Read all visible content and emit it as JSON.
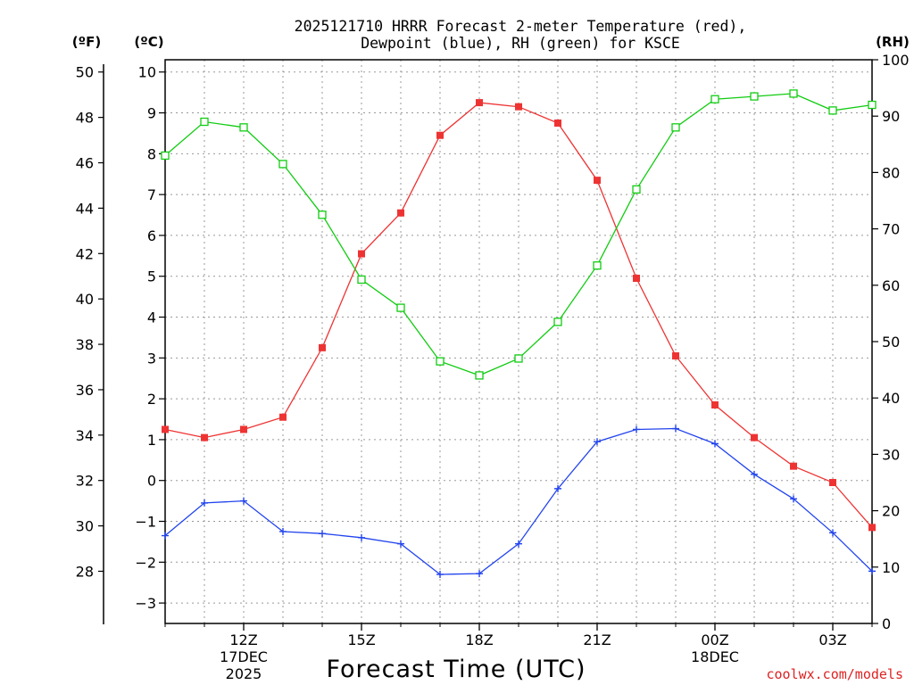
{
  "chart_data": {
    "type": "line",
    "title_line1": "2025121710 HRRR Forecast 2-meter Temperature (red),",
    "title_line2": "Dewpoint (blue), RH (green) for KSCE",
    "xlabel": "Forecast Time (UTC)",
    "unit_f": "(ºF)",
    "unit_c": "(ºC)",
    "unit_rh": "(RH)",
    "watermark": "coolwx.com/models",
    "x_hours": [
      10,
      11,
      12,
      13,
      14,
      15,
      16,
      17,
      18,
      19,
      20,
      21,
      22,
      23,
      24,
      25,
      26,
      27,
      28
    ],
    "x_range": [
      10,
      28
    ],
    "x_ticks": [
      {
        "hour": 12,
        "label": "12Z",
        "date": "17DEC",
        "year": "2025"
      },
      {
        "hour": 15,
        "label": "15Z"
      },
      {
        "hour": 18,
        "label": "18Z"
      },
      {
        "hour": 21,
        "label": "21Z"
      },
      {
        "hour": 24,
        "label": "00Z",
        "date": "18DEC"
      },
      {
        "hour": 27,
        "label": "03Z"
      }
    ],
    "c_axis": {
      "range": [
        -3.5,
        10.3
      ],
      "ticks": [
        -3,
        -2,
        -1,
        0,
        1,
        2,
        3,
        4,
        5,
        6,
        7,
        8,
        9,
        10
      ]
    },
    "f_axis": {
      "ticks": [
        28,
        30,
        32,
        34,
        36,
        38,
        40,
        42,
        44,
        46,
        48,
        50
      ]
    },
    "rh_axis": {
      "range": [
        0,
        100
      ],
      "ticks": [
        0,
        10,
        20,
        30,
        40,
        50,
        60,
        70,
        80,
        90,
        100
      ]
    },
    "series": [
      {
        "name": "Temperature",
        "axis": "c",
        "color": "#ee3333",
        "marker": "filled-square",
        "values": [
          1.25,
          1.05,
          1.25,
          1.55,
          3.25,
          5.55,
          6.55,
          8.45,
          9.25,
          9.15,
          8.75,
          7.35,
          4.95,
          3.05,
          1.85,
          1.05,
          0.35,
          -0.05,
          -1.15
        ]
      },
      {
        "name": "Dewpoint",
        "axis": "c",
        "color": "#2244ee",
        "marker": "plus",
        "values": [
          -1.35,
          -0.55,
          -0.5,
          -1.25,
          -1.3,
          -1.4,
          -1.55,
          -2.3,
          -2.28,
          -1.55,
          -0.2,
          0.95,
          1.25,
          1.27,
          0.9,
          0.15,
          -0.45,
          -1.28,
          -2.22
        ]
      },
      {
        "name": "RH",
        "axis": "rh",
        "color": "#11cc11",
        "marker": "open-square",
        "values": [
          83,
          89,
          88,
          81.5,
          72.5,
          61,
          56,
          46.5,
          44,
          47,
          53.5,
          63.5,
          77,
          88,
          93,
          93.5,
          94,
          91,
          92
        ]
      }
    ]
  }
}
